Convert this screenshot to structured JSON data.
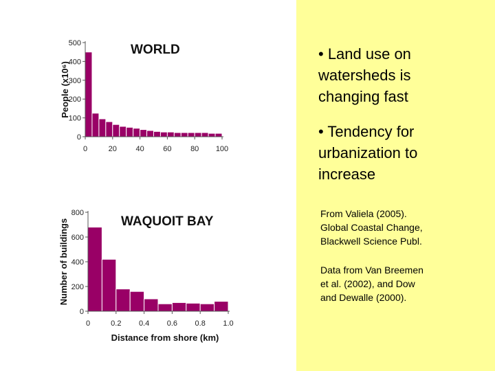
{
  "panel": {
    "bullet1": "• Land use on\nwatersheds is\nchanging fast",
    "bullet2": "• Tendency for\nurbanization to\nincrease",
    "source": "From Valiela (2005).\nGlobal Coastal Change,\nBlackwell Science Publ.",
    "data_source": "Data from Van Breemen\net al. (2002), and Dow\nand Dewalle (2000).",
    "background": "#ffff99"
  },
  "chart_data": [
    {
      "type": "bar",
      "title": "WORLD",
      "xlabel": "",
      "ylabel": "People (x10⁶)",
      "bar_color": "#990066",
      "xlim": [
        0,
        100
      ],
      "ylim": [
        0,
        500
      ],
      "xticks": [
        0,
        20,
        40,
        60,
        80,
        100
      ],
      "yticks": [
        0,
        100,
        200,
        300,
        400,
        500
      ],
      "x_tick_labels": [
        "0",
        "20",
        "40",
        "60",
        "80",
        "100"
      ],
      "y_tick_labels": [
        "0",
        "100",
        "200",
        "300",
        "400",
        "500"
      ],
      "bin_width": 5,
      "bins": [
        {
          "start": 0,
          "end": 5,
          "value": 450
        },
        {
          "start": 5,
          "end": 10,
          "value": 125
        },
        {
          "start": 10,
          "end": 15,
          "value": 95
        },
        {
          "start": 15,
          "end": 20,
          "value": 80
        },
        {
          "start": 20,
          "end": 25,
          "value": 65
        },
        {
          "start": 25,
          "end": 30,
          "value": 55
        },
        {
          "start": 30,
          "end": 35,
          "value": 50
        },
        {
          "start": 35,
          "end": 40,
          "value": 45
        },
        {
          "start": 40,
          "end": 45,
          "value": 38
        },
        {
          "start": 45,
          "end": 50,
          "value": 33
        },
        {
          "start": 50,
          "end": 55,
          "value": 28
        },
        {
          "start": 55,
          "end": 60,
          "value": 25
        },
        {
          "start": 60,
          "end": 65,
          "value": 25
        },
        {
          "start": 65,
          "end": 70,
          "value": 22
        },
        {
          "start": 70,
          "end": 75,
          "value": 22
        },
        {
          "start": 75,
          "end": 80,
          "value": 22
        },
        {
          "start": 80,
          "end": 85,
          "value": 22
        },
        {
          "start": 85,
          "end": 90,
          "value": 22
        },
        {
          "start": 90,
          "end": 95,
          "value": 18
        },
        {
          "start": 95,
          "end": 100,
          "value": 18
        }
      ]
    },
    {
      "type": "bar",
      "title": "WAQUOIT BAY",
      "xlabel": "Distance from shore (km)",
      "ylabel": "Number of buildings",
      "bar_color": "#990066",
      "xlim": [
        0,
        1.0
      ],
      "ylim": [
        0,
        800
      ],
      "xticks": [
        0,
        0.2,
        0.4,
        0.6,
        0.8,
        1.0
      ],
      "yticks": [
        0,
        200,
        400,
        600,
        800
      ],
      "x_tick_labels": [
        "0",
        "0.2",
        "0.4",
        "0.6",
        "0.8",
        "1.0"
      ],
      "y_tick_labels": [
        "0",
        "200",
        "400",
        "600",
        "800"
      ],
      "bin_width": 0.1,
      "bins": [
        {
          "start": 0.0,
          "end": 0.1,
          "value": 680
        },
        {
          "start": 0.1,
          "end": 0.2,
          "value": 420
        },
        {
          "start": 0.2,
          "end": 0.3,
          "value": 180
        },
        {
          "start": 0.3,
          "end": 0.4,
          "value": 160
        },
        {
          "start": 0.4,
          "end": 0.5,
          "value": 100
        },
        {
          "start": 0.5,
          "end": 0.6,
          "value": 60
        },
        {
          "start": 0.6,
          "end": 0.7,
          "value": 70
        },
        {
          "start": 0.7,
          "end": 0.8,
          "value": 65
        },
        {
          "start": 0.8,
          "end": 0.9,
          "value": 60
        },
        {
          "start": 0.9,
          "end": 1.0,
          "value": 80
        }
      ]
    }
  ]
}
